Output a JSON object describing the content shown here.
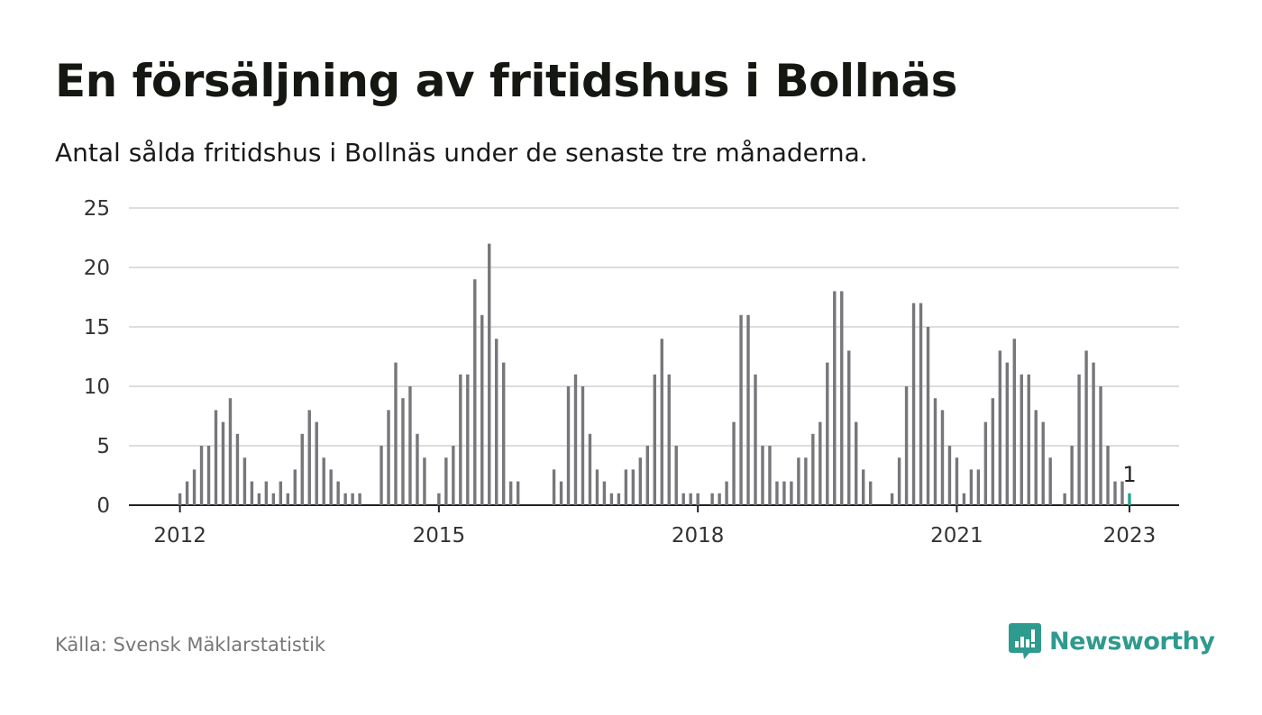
{
  "header": {
    "title": "En försäljning av fritidshus i Bollnäs",
    "subtitle": "Antal sålda fritidshus i Bollnäs under de senaste tre månaderna."
  },
  "footer": {
    "source": "Källa: Svensk Mäklarstatistik",
    "brand": "Newsworthy",
    "brand_icon": "newsworthy-logo-icon"
  },
  "colors": {
    "bar": "#77767b",
    "highlight": "#2ba094",
    "grid": "#dddddd",
    "axis": "#222222",
    "brand": "#2f9a8e"
  },
  "chart_data": {
    "type": "bar",
    "title": "",
    "xlabel": "",
    "ylabel": "",
    "ylim": [
      0,
      25
    ],
    "yticks": [
      "0",
      "5",
      "10",
      "15",
      "20",
      "25"
    ],
    "xticks": [
      {
        "label": "2012",
        "value": "2012-01"
      },
      {
        "label": "2015",
        "value": "2015-01"
      },
      {
        "label": "2018",
        "value": "2018-01"
      },
      {
        "label": "2021",
        "value": "2021-01"
      },
      {
        "label": "2023",
        "value": "2023-01"
      }
    ],
    "grid": true,
    "highlight_label": "1",
    "highlight_category": "2023-01",
    "categories": [
      "2011-06",
      "2011-07",
      "2011-08",
      "2011-09",
      "2011-10",
      "2011-11",
      "2011-12",
      "2012-01",
      "2012-02",
      "2012-03",
      "2012-04",
      "2012-05",
      "2012-06",
      "2012-07",
      "2012-08",
      "2012-09",
      "2012-10",
      "2012-11",
      "2012-12",
      "2013-01",
      "2013-02",
      "2013-03",
      "2013-04",
      "2013-05",
      "2013-06",
      "2013-07",
      "2013-08",
      "2013-09",
      "2013-10",
      "2013-11",
      "2013-12",
      "2014-01",
      "2014-02",
      "2014-03",
      "2014-04",
      "2014-05",
      "2014-06",
      "2014-07",
      "2014-08",
      "2014-09",
      "2014-10",
      "2014-11",
      "2014-12",
      "2015-01",
      "2015-02",
      "2015-03",
      "2015-04",
      "2015-05",
      "2015-06",
      "2015-07",
      "2015-08",
      "2015-09",
      "2015-10",
      "2015-11",
      "2015-12",
      "2016-01",
      "2016-02",
      "2016-03",
      "2016-04",
      "2016-05",
      "2016-06",
      "2016-07",
      "2016-08",
      "2016-09",
      "2016-10",
      "2016-11",
      "2016-12",
      "2017-01",
      "2017-02",
      "2017-03",
      "2017-04",
      "2017-05",
      "2017-06",
      "2017-07",
      "2017-08",
      "2017-09",
      "2017-10",
      "2017-11",
      "2017-12",
      "2018-01",
      "2018-02",
      "2018-03",
      "2018-04",
      "2018-05",
      "2018-06",
      "2018-07",
      "2018-08",
      "2018-09",
      "2018-10",
      "2018-11",
      "2018-12",
      "2019-01",
      "2019-02",
      "2019-03",
      "2019-04",
      "2019-05",
      "2019-06",
      "2019-07",
      "2019-08",
      "2019-09",
      "2019-10",
      "2019-11",
      "2019-12",
      "2020-01",
      "2020-02",
      "2020-03",
      "2020-04",
      "2020-05",
      "2020-06",
      "2020-07",
      "2020-08",
      "2020-09",
      "2020-10",
      "2020-11",
      "2020-12",
      "2021-01",
      "2021-02",
      "2021-03",
      "2021-04",
      "2021-05",
      "2021-06",
      "2021-07",
      "2021-08",
      "2021-09",
      "2021-10",
      "2021-11",
      "2021-12",
      "2022-01",
      "2022-02",
      "2022-03",
      "2022-04",
      "2022-05",
      "2022-06",
      "2022-07",
      "2022-08",
      "2022-09",
      "2022-10",
      "2022-11",
      "2022-12",
      "2023-01"
    ],
    "values": [
      0,
      0,
      0,
      0,
      0,
      0,
      0,
      1,
      2,
      3,
      5,
      5,
      8,
      7,
      9,
      6,
      4,
      2,
      1,
      2,
      1,
      2,
      1,
      3,
      6,
      8,
      7,
      4,
      3,
      2,
      1,
      1,
      1,
      0,
      0,
      5,
      8,
      12,
      9,
      10,
      6,
      4,
      0,
      1,
      4,
      5,
      11,
      11,
      19,
      16,
      22,
      14,
      12,
      2,
      2,
      0,
      0,
      0,
      0,
      3,
      2,
      10,
      11,
      10,
      6,
      3,
      2,
      1,
      1,
      3,
      3,
      4,
      5,
      11,
      14,
      11,
      5,
      1,
      1,
      1,
      0,
      1,
      1,
      2,
      7,
      16,
      16,
      11,
      5,
      5,
      2,
      2,
      2,
      4,
      4,
      6,
      7,
      12,
      18,
      18,
      13,
      7,
      3,
      2,
      0,
      0,
      1,
      4,
      10,
      17,
      17,
      15,
      9,
      8,
      5,
      4,
      1,
      3,
      3,
      7,
      9,
      13,
      12,
      14,
      11,
      11,
      8,
      7,
      4,
      0,
      1,
      5,
      11,
      13,
      12,
      10,
      5,
      2,
      2,
      1
    ]
  }
}
